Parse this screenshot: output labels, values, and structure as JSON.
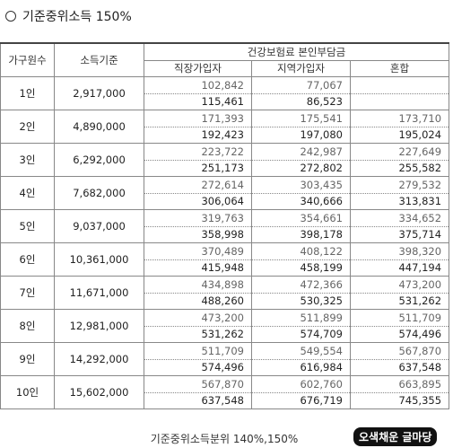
{
  "title": "기준중위소득 150%",
  "table": {
    "headers": {
      "household": "가구원수",
      "income": "소득기준",
      "insurance": "건강보험료 본인부담금",
      "sub": [
        "직장가입자",
        "지역가입자",
        "혼합"
      ]
    },
    "rows": [
      {
        "size": "1인",
        "income": "2,917,000",
        "lines": [
          [
            "102,842",
            "77,067",
            null
          ],
          [
            "115,461",
            "86,523",
            null
          ]
        ]
      },
      {
        "size": "2인",
        "income": "4,890,000",
        "lines": [
          [
            "171,393",
            "175,541",
            "173,710"
          ],
          [
            "192,423",
            "197,080",
            "195,024"
          ]
        ]
      },
      {
        "size": "3인",
        "income": "6,292,000",
        "lines": [
          [
            "223,722",
            "242,987",
            "227,649"
          ],
          [
            "251,173",
            "272,802",
            "255,582"
          ]
        ]
      },
      {
        "size": "4인",
        "income": "7,682,000",
        "lines": [
          [
            "272,614",
            "303,435",
            "279,532"
          ],
          [
            "306,064",
            "340,666",
            "313,831"
          ]
        ]
      },
      {
        "size": "5인",
        "income": "9,037,000",
        "lines": [
          [
            "319,763",
            "354,661",
            "334,652"
          ],
          [
            "358,998",
            "398,178",
            "375,714"
          ]
        ]
      },
      {
        "size": "6인",
        "income": "10,361,000",
        "lines": [
          [
            "370,489",
            "408,122",
            "398,320"
          ],
          [
            "415,948",
            "458,199",
            "447,194"
          ]
        ]
      },
      {
        "size": "7인",
        "income": "11,671,000",
        "lines": [
          [
            "434,898",
            "472,366",
            "473,200"
          ],
          [
            "488,260",
            "530,325",
            "531,262"
          ]
        ]
      },
      {
        "size": "8인",
        "income": "12,981,000",
        "lines": [
          [
            "473,200",
            "511,899",
            "511,709"
          ],
          [
            "531,262",
            "574,709",
            "574,496"
          ]
        ]
      },
      {
        "size": "9인",
        "income": "14,292,000",
        "lines": [
          [
            "511,709",
            "549,554",
            "567,870"
          ],
          [
            "574,496",
            "616,984",
            "637,548"
          ]
        ]
      },
      {
        "size": "10인",
        "income": "15,602,000",
        "lines": [
          [
            "567,870",
            "602,760",
            "663,895"
          ],
          [
            "637,548",
            "676,719",
            "745,355"
          ]
        ]
      }
    ]
  },
  "caption": "기준중위소득분위 140%,150%",
  "watermark": "오색채운 글마당"
}
